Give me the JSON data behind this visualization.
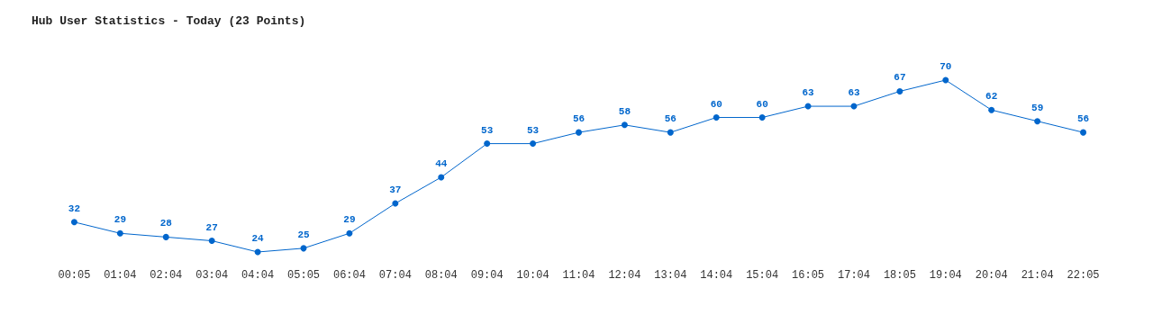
{
  "chart_data": {
    "type": "line",
    "title": "Hub User Statistics - Today (23 Points)",
    "categories": [
      "00:05",
      "01:04",
      "02:04",
      "03:04",
      "04:04",
      "05:05",
      "06:04",
      "07:04",
      "08:04",
      "09:04",
      "10:04",
      "11:04",
      "12:04",
      "13:04",
      "14:04",
      "15:04",
      "16:05",
      "17:04",
      "18:05",
      "19:04",
      "20:04",
      "21:04",
      "22:05"
    ],
    "series": [
      {
        "color": "#0066cc",
        "values": [
          32,
          29,
          28,
          27,
          24,
          25,
          29,
          37,
          44,
          53,
          53,
          56,
          58,
          56,
          60,
          60,
          63,
          63,
          67,
          70,
          62,
          59,
          56
        ]
      }
    ],
    "data_labels": true,
    "marker": "circle",
    "line_style": "solid",
    "grid": false
  }
}
